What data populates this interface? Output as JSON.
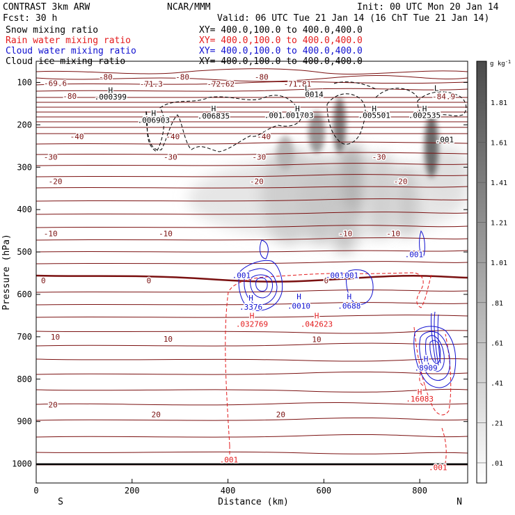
{
  "header": {
    "left_title": "CONTRAST  3km ARW",
    "center_title": "NCAR/MMM",
    "init": "Init: 00 UTC Mon 20 Jan 14",
    "fcst": "Fcst:   30 h",
    "valid": "Valid: 06 UTC Tue 21 Jan 14 (16 ChT Tue 21 Jan 14)"
  },
  "fields": [
    {
      "name": "Snow mixing ratio",
      "color": "#000000",
      "xy": "XY= 400.0,100.0 to 400.0,400.0"
    },
    {
      "name": "Rain water mixing ratio",
      "color": "#e31a1c",
      "xy": "XY= 400.0,100.0 to 400.0,400.0"
    },
    {
      "name": "Cloud water mixing ratio",
      "color": "#1010d0",
      "xy": "XY= 400.0,100.0 to 400.0,400.0"
    },
    {
      "name": "Cloud ice mixing ratio",
      "color": "#000000",
      "xy": "XY= 400.0,100.0 to 400.0,400.0"
    }
  ],
  "chart_data": {
    "type": "contour-cross-section",
    "ylabel": "Pressure (hPa)",
    "xlabel": "Distance (km)",
    "xlim": [
      0,
      900
    ],
    "ylim": [
      1045,
      50
    ],
    "x_ticks": [
      0,
      200,
      400,
      600,
      800
    ],
    "y_ticks": [
      100,
      200,
      300,
      400,
      500,
      600,
      700,
      800,
      900,
      1000
    ],
    "endpoint_labels": {
      "left": "S",
      "right": "N"
    },
    "colorbar": {
      "unit": "g kg",
      "unit_sup": "-1",
      "levels": [
        ".01",
        ".21",
        ".41",
        ".61",
        ".81",
        "1.01",
        "1.21",
        "1.41",
        "1.61",
        "1.81"
      ]
    },
    "temperature_labels": [
      {
        "x": 40,
        "p": 102,
        "t": "-69.6"
      },
      {
        "x": 145,
        "p": 87,
        "t": "-80"
      },
      {
        "x": 240,
        "p": 103,
        "t": "-71.3"
      },
      {
        "x": 305,
        "p": 87,
        "t": "-80"
      },
      {
        "x": 385,
        "p": 103,
        "t": "-72.62"
      },
      {
        "x": 470,
        "p": 87,
        "t": "-80"
      },
      {
        "x": 545,
        "p": 103,
        "t": "-71.81"
      },
      {
        "x": 70,
        "p": 132,
        "t": "-80"
      },
      {
        "x": 850,
        "p": 133,
        "t": "-84.9"
      },
      {
        "x": 85,
        "p": 227,
        "t": "-40"
      },
      {
        "x": 285,
        "p": 227,
        "t": "-40"
      },
      {
        "x": 475,
        "p": 227,
        "t": "-40"
      },
      {
        "x": 30,
        "p": 276,
        "t": "-30"
      },
      {
        "x": 280,
        "p": 276,
        "t": "-30"
      },
      {
        "x": 465,
        "p": 276,
        "t": "-30"
      },
      {
        "x": 715,
        "p": 276,
        "t": "-30"
      },
      {
        "x": 40,
        "p": 333,
        "t": "-20"
      },
      {
        "x": 460,
        "p": 333,
        "t": "-20"
      },
      {
        "x": 760,
        "p": 333,
        "t": "-20"
      },
      {
        "x": 30,
        "p": 456,
        "t": "-10"
      },
      {
        "x": 270,
        "p": 456,
        "t": "-10"
      },
      {
        "x": 645,
        "p": 456,
        "t": "-10"
      },
      {
        "x": 745,
        "p": 456,
        "t": "-10"
      },
      {
        "x": 15,
        "p": 567,
        "t": "0"
      },
      {
        "x": 235,
        "p": 567,
        "t": "0"
      },
      {
        "x": 605,
        "p": 567,
        "t": "0"
      },
      {
        "x": 40,
        "p": 700,
        "t": "10"
      },
      {
        "x": 275,
        "p": 705,
        "t": "10"
      },
      {
        "x": 585,
        "p": 706,
        "t": "10"
      },
      {
        "x": 35,
        "p": 860,
        "t": "20"
      },
      {
        "x": 250,
        "p": 883,
        "t": "20"
      },
      {
        "x": 510,
        "p": 883,
        "t": "20"
      }
    ],
    "cloud_water_labels": [
      {
        "x": 428,
        "p": 555,
        "t": ".001"
      },
      {
        "x": 448,
        "p": 608,
        "t": "H"
      },
      {
        "x": 448,
        "p": 630,
        "t": ".3376"
      },
      {
        "x": 548,
        "p": 605,
        "t": "H"
      },
      {
        "x": 548,
        "p": 627,
        "t": ".0010"
      },
      {
        "x": 623,
        "p": 555,
        "t": ".001"
      },
      {
        "x": 653,
        "p": 555,
        "t": ".001"
      },
      {
        "x": 653,
        "p": 605,
        "t": "H"
      },
      {
        "x": 653,
        "p": 627,
        "t": ".0688"
      },
      {
        "x": 788,
        "p": 506,
        "t": ".001"
      },
      {
        "x": 813,
        "p": 752,
        "t": "H"
      },
      {
        "x": 813,
        "p": 773,
        "t": ".8909"
      }
    ],
    "rain_labels": [
      {
        "x": 450,
        "p": 650,
        "t": "H"
      },
      {
        "x": 450,
        "p": 670,
        "t": ".032769"
      },
      {
        "x": 585,
        "p": 650,
        "t": "H"
      },
      {
        "x": 585,
        "p": 670,
        "t": ".042623"
      },
      {
        "x": 800,
        "p": 830,
        "t": "H"
      },
      {
        "x": 800,
        "p": 846,
        "t": ".16083"
      },
      {
        "x": 402,
        "p": 990,
        "t": ".001"
      },
      {
        "x": 838,
        "p": 1008,
        "t": ".001"
      }
    ],
    "snow_labels": [
      {
        "x": 155,
        "p": 118,
        "t": "H"
      },
      {
        "x": 155,
        "p": 134,
        "t": ".000399"
      },
      {
        "x": 245,
        "p": 172,
        "t": "H"
      },
      {
        "x": 245,
        "p": 189,
        "t": ".006903"
      },
      {
        "x": 370,
        "p": 162,
        "t": "H"
      },
      {
        "x": 370,
        "p": 179,
        "t": ".006835"
      },
      {
        "x": 495,
        "p": 177,
        "t": ".001"
      },
      {
        "x": 545,
        "p": 162,
        "t": "H"
      },
      {
        "x": 545,
        "p": 177,
        "t": ".001703"
      },
      {
        "x": 565,
        "p": 113,
        "t": "L"
      },
      {
        "x": 580,
        "p": 128,
        "t": "0014"
      },
      {
        "x": 705,
        "p": 162,
        "t": "H"
      },
      {
        "x": 705,
        "p": 177,
        "t": ".005501"
      },
      {
        "x": 810,
        "p": 162,
        "t": "H"
      },
      {
        "x": 810,
        "p": 177,
        "t": ".002535"
      },
      {
        "x": 835,
        "p": 113,
        "t": "L"
      },
      {
        "x": 852,
        "p": 235,
        "t": ".001"
      }
    ]
  }
}
